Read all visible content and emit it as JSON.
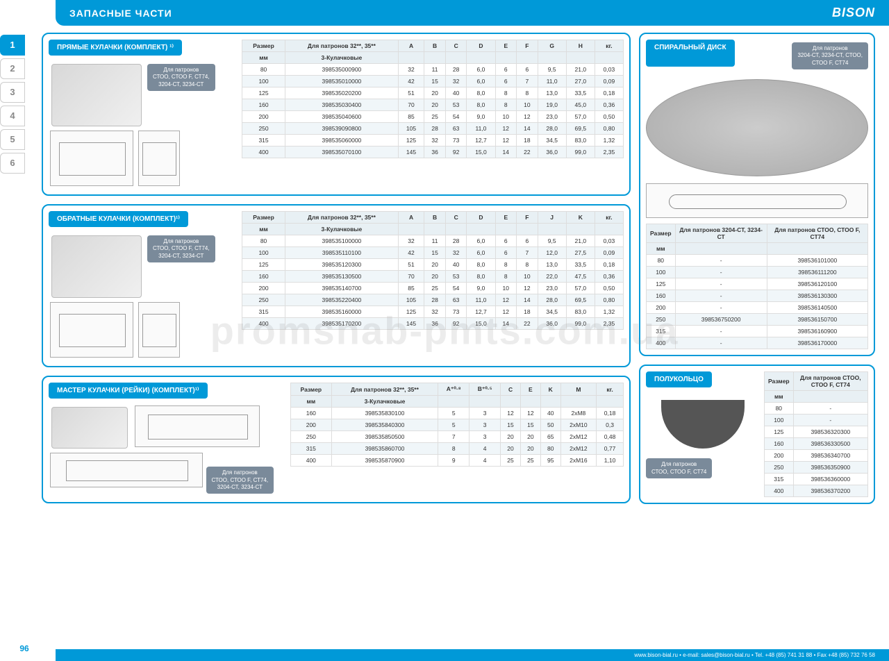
{
  "header": {
    "title": "ЗАПАСНЫЕ ЧАСТИ",
    "brand": "BISON"
  },
  "tabs": [
    "1",
    "2",
    "3",
    "4",
    "5",
    "6"
  ],
  "watermark": "promsnab-pmts.com.ua",
  "page_number": "96",
  "footer": "www.bison-bial.ru  •  e-mail: sales@bison-bial.ru  •  Tel. +48 (85) 741 31 88  •  Fax +48 (85) 732 76 58",
  "panels": {
    "p1": {
      "title": "ПРЯМЫЕ КУЛАЧКИ (КОМПЛЕКТ) ¹⁾",
      "badge": "Для патронов\\nСТОО, СТОО F, СТ74,\\n3204-СТ, 3234-СТ",
      "headers": [
        "Размер",
        "Для патронов 32**, 35**",
        "A",
        "B",
        "C",
        "D",
        "E",
        "F",
        "G",
        "H",
        "кг."
      ],
      "subheaders": [
        "мм",
        "3-Кулачковые",
        "",
        "",
        "",
        "",
        "",
        "",
        "",
        "",
        ""
      ],
      "rows": [
        [
          "80",
          "398535000900",
          "32",
          "11",
          "28",
          "6,0",
          "6",
          "6",
          "9,5",
          "21,0",
          "0,03"
        ],
        [
          "100",
          "398535010000",
          "42",
          "15",
          "32",
          "6,0",
          "6",
          "7",
          "11,0",
          "27,0",
          "0,09"
        ],
        [
          "125",
          "398535020200",
          "51",
          "20",
          "40",
          "8,0",
          "8",
          "8",
          "13,0",
          "33,5",
          "0,18"
        ],
        [
          "160",
          "398535030400",
          "70",
          "20",
          "53",
          "8,0",
          "8",
          "10",
          "19,0",
          "45,0",
          "0,36"
        ],
        [
          "200",
          "398535040600",
          "85",
          "25",
          "54",
          "9,0",
          "10",
          "12",
          "23,0",
          "57,0",
          "0,50"
        ],
        [
          "250",
          "398539090800",
          "105",
          "28",
          "63",
          "11,0",
          "12",
          "14",
          "28,0",
          "69,5",
          "0,80"
        ],
        [
          "315",
          "398535060000",
          "125",
          "32",
          "73",
          "12,7",
          "12",
          "18",
          "34,5",
          "83,0",
          "1,32"
        ],
        [
          "400",
          "398535070100",
          "145",
          "36",
          "92",
          "15,0",
          "14",
          "22",
          "36,0",
          "99,0",
          "2,35"
        ]
      ]
    },
    "p2": {
      "title": "ОБРАТНЫЕ КУЛАЧКИ (КОМПЛЕКТ)¹⁾",
      "badge": "Для патронов\\nСТОО, СТОО F, СТ74,\\n3204-СТ, 3234-СТ",
      "headers": [
        "Размер",
        "Для патронов 32**, 35**",
        "A",
        "B",
        "C",
        "D",
        "E",
        "F",
        "J",
        "K",
        "кг."
      ],
      "subheaders": [
        "мм",
        "3-Кулачковые",
        "",
        "",
        "",
        "",
        "",
        "",
        "",
        "",
        ""
      ],
      "rows": [
        [
          "80",
          "398535100000",
          "32",
          "11",
          "28",
          "6,0",
          "6",
          "6",
          "9,5",
          "21,0",
          "0,03"
        ],
        [
          "100",
          "398535110100",
          "42",
          "15",
          "32",
          "6,0",
          "6",
          "7",
          "12,0",
          "27,5",
          "0,09"
        ],
        [
          "125",
          "398535120300",
          "51",
          "20",
          "40",
          "8,0",
          "8",
          "8",
          "13,0",
          "33,5",
          "0,18"
        ],
        [
          "160",
          "398535130500",
          "70",
          "20",
          "53",
          "8,0",
          "8",
          "10",
          "22,0",
          "47,5",
          "0,36"
        ],
        [
          "200",
          "398535140700",
          "85",
          "25",
          "54",
          "9,0",
          "10",
          "12",
          "23,0",
          "57,0",
          "0,50"
        ],
        [
          "250",
          "398535220400",
          "105",
          "28",
          "63",
          "11,0",
          "12",
          "14",
          "28,0",
          "69,5",
          "0,80"
        ],
        [
          "315",
          "398535160000",
          "125",
          "32",
          "73",
          "12,7",
          "12",
          "18",
          "34,5",
          "83,0",
          "1,32"
        ],
        [
          "400",
          "398535170200",
          "145",
          "36",
          "92",
          "15,0",
          "14",
          "22",
          "36,0",
          "99,0",
          "2,35"
        ]
      ]
    },
    "p3": {
      "title": "МАСТЕР КУЛАЧКИ (РЕЙКИ) (КОМПЛЕКТ)¹⁾",
      "badge": "Для патронов\\nСТОО, СТОО F, СТ74,\\n3204-СТ, 3234-СТ",
      "headers": [
        "Размер",
        "Для патронов 32**, 35**",
        "A⁺⁰·⁸",
        "B⁺⁰·⁵",
        "C",
        "E",
        "K",
        "M",
        "кг."
      ],
      "subheaders": [
        "мм",
        "3-Кулачковые",
        "",
        "",
        "",
        "",
        "",
        "",
        ""
      ],
      "rows": [
        [
          "160",
          "398535830100",
          "5",
          "3",
          "12",
          "12",
          "40",
          "2xM8",
          "0,18"
        ],
        [
          "200",
          "398535840300",
          "5",
          "3",
          "15",
          "15",
          "50",
          "2xM10",
          "0,3"
        ],
        [
          "250",
          "398535850500",
          "7",
          "3",
          "20",
          "20",
          "65",
          "2xM12",
          "0,48"
        ],
        [
          "315",
          "398535860700",
          "8",
          "4",
          "20",
          "20",
          "80",
          "2xM12",
          "0,77"
        ],
        [
          "400",
          "398535870900",
          "9",
          "4",
          "25",
          "25",
          "95",
          "2xM16",
          "1,10"
        ]
      ]
    },
    "spiral": {
      "title": "СПИРАЛЬНЫЙ ДИСК",
      "badge": "Для патронов\\n3204-СТ, 3234-СТ, СТОО,\\nСТОО F, СТ74",
      "headers": [
        "Размер",
        "Для патронов 3204-СТ, 3234-СТ",
        "Для патронов СТОО, СТОО F, СТ74"
      ],
      "subheaders": [
        "мм",
        "",
        ""
      ],
      "rows": [
        [
          "80",
          "-",
          "398536101000"
        ],
        [
          "100",
          "-",
          "398536111200"
        ],
        [
          "125",
          "-",
          "398536120100"
        ],
        [
          "160",
          "-",
          "398536130300"
        ],
        [
          "200",
          "-",
          "398536140500"
        ],
        [
          "250",
          "398536750200",
          "398536150700"
        ],
        [
          "315",
          "-",
          "398536160900"
        ],
        [
          "400",
          "-",
          "398536170000"
        ]
      ]
    },
    "halfring": {
      "title": "ПОЛУКОЛЬЦО",
      "badge": "Для патронов\\nСТОО, СТОО F, СТ74",
      "headers": [
        "Размер",
        "Для патронов СТОО, СТОО F, СТ74"
      ],
      "subheaders": [
        "мм",
        ""
      ],
      "rows": [
        [
          "80",
          "-"
        ],
        [
          "100",
          "-"
        ],
        [
          "125",
          "398536320300"
        ],
        [
          "160",
          "398536330500"
        ],
        [
          "200",
          "398536340700"
        ],
        [
          "250",
          "398536350900"
        ],
        [
          "315",
          "398536360000"
        ],
        [
          "400",
          "398536370200"
        ]
      ]
    }
  }
}
